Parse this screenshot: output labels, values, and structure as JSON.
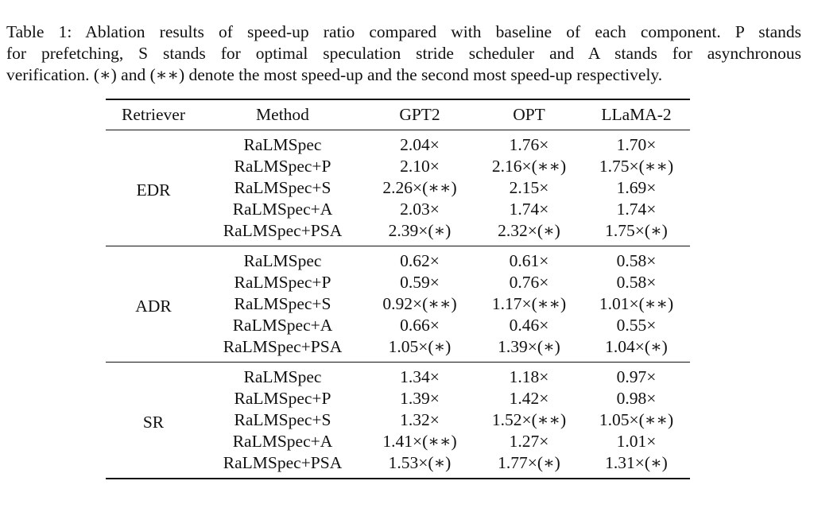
{
  "caption": {
    "lines": [
      "Table 1: Ablation results of speed-up ratio compared with baseline of each component. P stands",
      "for prefetching, S stands for optimal speculation stride scheduler and A stands for asynchronous",
      "verification. (∗) and (∗∗) denote the most speed-up and the second most speed-up respectively."
    ]
  },
  "table": {
    "headers": [
      "Retriever",
      "Method",
      "GPT2",
      "OPT",
      "LLaMA-2"
    ],
    "groups": [
      {
        "retriever": "EDR",
        "rows": [
          [
            "RaLMSpec",
            "2.04×",
            "1.76×",
            "1.70×"
          ],
          [
            "RaLMSpec+P",
            "2.10×",
            "2.16×(∗∗)",
            "1.75×(∗∗)"
          ],
          [
            "RaLMSpec+S",
            "2.26×(∗∗)",
            "2.15×",
            "1.69×"
          ],
          [
            "RaLMSpec+A",
            "2.03×",
            "1.74×",
            "1.74×"
          ],
          [
            "RaLMSpec+PSA",
            "2.39×(∗)",
            "2.32×(∗)",
            "1.75×(∗)"
          ]
        ]
      },
      {
        "retriever": "ADR",
        "rows": [
          [
            "RaLMSpec",
            "0.62×",
            "0.61×",
            "0.58×"
          ],
          [
            "RaLMSpec+P",
            "0.59×",
            "0.76×",
            "0.58×"
          ],
          [
            "RaLMSpec+S",
            "0.92×(∗∗)",
            "1.17×(∗∗)",
            "1.01×(∗∗)"
          ],
          [
            "RaLMSpec+A",
            "0.66×",
            "0.46×",
            "0.55×"
          ],
          [
            "RaLMSpec+PSA",
            "1.05×(∗)",
            "1.39×(∗)",
            "1.04×(∗)"
          ]
        ]
      },
      {
        "retriever": "SR",
        "rows": [
          [
            "RaLMSpec",
            "1.34×",
            "1.18×",
            "0.97×"
          ],
          [
            "RaLMSpec+P",
            "1.39×",
            "1.42×",
            "0.98×"
          ],
          [
            "RaLMSpec+S",
            "1.32×",
            "1.52×(∗∗)",
            "1.05×(∗∗)"
          ],
          [
            "RaLMSpec+A",
            "1.41×(∗∗)",
            "1.27×",
            "1.01×"
          ],
          [
            "RaLMSpec+PSA",
            "1.53×(∗)",
            "1.77×(∗)",
            "1.31×(∗)"
          ]
        ]
      }
    ]
  }
}
